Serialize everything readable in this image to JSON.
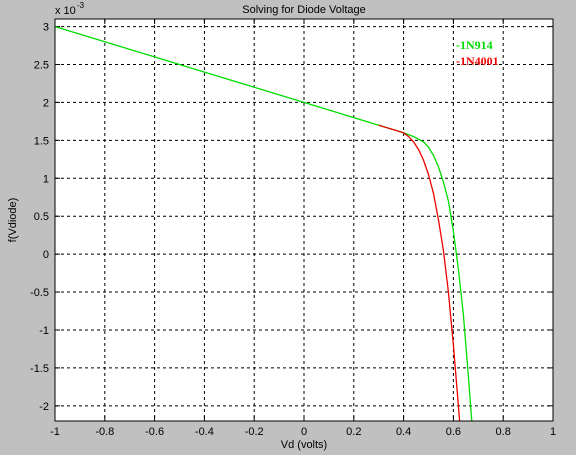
{
  "chart_data": {
    "type": "line",
    "title": "Solving for Diode Voltage",
    "xlabel": "Vd (volts)",
    "ylabel": "f(Vdiode)",
    "y_multiplier": "x 10",
    "y_multiplier_exp": "-3",
    "xlim": [
      -1,
      1
    ],
    "ylim": [
      -0.0022,
      0.0031
    ],
    "grid": true,
    "legend_position": "top-right",
    "x_ticks": [
      -1,
      -0.8,
      -0.6,
      -0.4,
      -0.2,
      0,
      0.2,
      0.4,
      0.6,
      0.8,
      1
    ],
    "x_tick_labels": [
      "-1",
      "-0.8",
      "-0.6",
      "-0.4",
      "-0.2",
      "0",
      "0.2",
      "0.4",
      "0.6",
      "0.8",
      "1"
    ],
    "y_ticks": [
      -0.002,
      -0.0015,
      -0.001,
      -0.0005,
      0,
      0.0005,
      0.001,
      0.0015,
      0.002,
      0.0025,
      0.003
    ],
    "y_tick_labels": [
      "-2",
      "-1.5",
      "-1",
      "-0.5",
      "0",
      "0.5",
      "1",
      "1.5",
      "2",
      "2.5",
      "3"
    ],
    "series": [
      {
        "name": "-1N914",
        "color": "#00dd00",
        "x": [
          -1,
          -0.8,
          -0.6,
          -0.4,
          -0.2,
          0,
          0.2,
          0.3,
          0.4,
          0.44,
          0.48,
          0.5,
          0.52,
          0.54,
          0.56,
          0.58,
          0.6,
          0.62,
          0.64,
          0.66,
          0.674
        ],
        "y": [
          0.003,
          0.0028,
          0.0026,
          0.0024,
          0.0022,
          0.002,
          0.0018,
          0.0017,
          0.0016,
          0.00155,
          0.00148,
          0.00141,
          0.0013,
          0.00115,
          0.00095,
          0.0007,
          0.0003,
          -0.0002,
          -0.0008,
          -0.0016,
          -0.0022
        ]
      },
      {
        "name": "-1N4001",
        "color": "#ee0000",
        "x": [
          0.3,
          0.35,
          0.4,
          0.42,
          0.44,
          0.46,
          0.48,
          0.5,
          0.52,
          0.54,
          0.56,
          0.58,
          0.6,
          0.61,
          0.62,
          0.625
        ],
        "y": [
          0.0017,
          0.00165,
          0.0016,
          0.00155,
          0.00148,
          0.00138,
          0.00124,
          0.00105,
          0.0008,
          0.00045,
          5e-05,
          -0.0005,
          -0.0012,
          -0.0016,
          -0.002,
          -0.0022
        ]
      }
    ]
  }
}
